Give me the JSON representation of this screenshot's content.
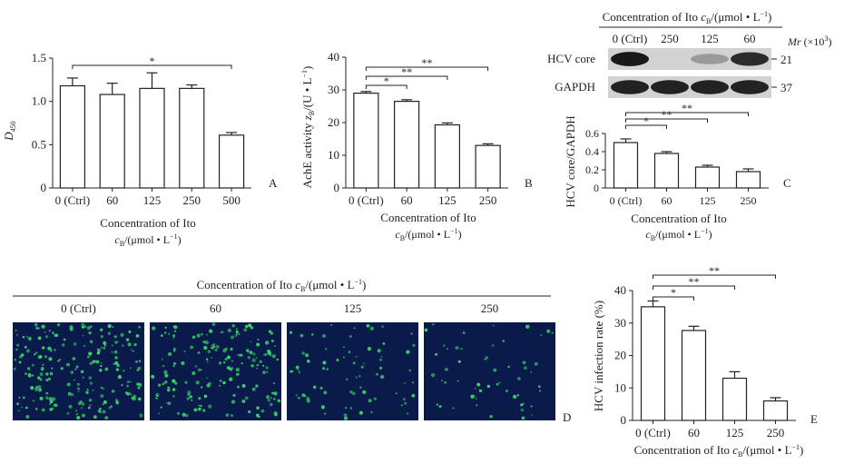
{
  "chart_data": [
    {
      "panel": "A",
      "type": "bar",
      "ylabel_main": "D",
      "ylabel_sub": "450",
      "categories": [
        "0 (Ctrl)",
        "60",
        "125",
        "250",
        "500"
      ],
      "values": [
        1.18,
        1.08,
        1.15,
        1.15,
        0.61
      ],
      "errors": [
        0.09,
        0.13,
        0.18,
        0.04,
        0.03
      ],
      "ylim": [
        0,
        1.5
      ],
      "yticks": [
        "0",
        "0.5",
        "1.0",
        "1.5"
      ],
      "xlabel_line1": "Concentration of Ito",
      "xlabel_line2": "cB/(μmol • L−1)",
      "significance": [
        {
          "from": 0,
          "to": 4,
          "mark": "*"
        }
      ]
    },
    {
      "panel": "B",
      "type": "bar",
      "ylabel_a": "AchE activity ",
      "ylabel_b": "z",
      "ylabel_b_sub": "B",
      "ylabel_c": "/(U • L",
      "ylabel_c_sup": "−1",
      "ylabel_d": ")",
      "categories": [
        "0 (Ctrl)",
        "60",
        "125",
        "250"
      ],
      "values": [
        29,
        26.5,
        19.3,
        13
      ],
      "errors": [
        0.5,
        0.5,
        0.6,
        0.5
      ],
      "ylim": [
        0,
        40
      ],
      "yticks": [
        "0",
        "10",
        "20",
        "30",
        "40"
      ],
      "xlabel_line1": "Concentration of Ito",
      "xlabel_line2": "cB/(μmol • L−1)",
      "significance": [
        {
          "from": 0,
          "to": 1,
          "mark": "*"
        },
        {
          "from": 0,
          "to": 2,
          "mark": "**"
        },
        {
          "from": 0,
          "to": 3,
          "mark": "**"
        }
      ]
    },
    {
      "panel": "C",
      "type": "bar",
      "ylabel": "HCV core/GAPDH",
      "categories": [
        "0 (Ctrl)",
        "60",
        "125",
        "250"
      ],
      "values": [
        0.5,
        0.38,
        0.23,
        0.18
      ],
      "errors": [
        0.04,
        0.02,
        0.02,
        0.03
      ],
      "ylim": [
        0,
        0.6
      ],
      "yticks": [
        "0",
        "0.2",
        "0.4",
        "0.6"
      ],
      "xlabel_line1": "Concentration of Ito",
      "xlabel_line2": "cB/(μmol • L−1)",
      "significance": [
        {
          "from": 0,
          "to": 1,
          "mark": "*"
        },
        {
          "from": 0,
          "to": 2,
          "mark": "**"
        },
        {
          "from": 0,
          "to": 3,
          "mark": "**"
        }
      ]
    },
    {
      "panel": "E",
      "type": "bar",
      "ylabel": "HCV infection rate (%)",
      "categories": [
        "0 (Ctrl)",
        "60",
        "125",
        "250"
      ],
      "values": [
        35,
        27.7,
        13,
        6
      ],
      "errors": [
        1.8,
        1.3,
        2.0,
        1.0
      ],
      "ylim": [
        0,
        40
      ],
      "yticks": [
        "0",
        "10",
        "20",
        "30",
        "40"
      ],
      "xlabel_pre": "Concentration of Ito ",
      "xlabel_c": "c",
      "xlabel_sub": "B",
      "xlabel_post": "/(μmol • L",
      "xlabel_sup": "−1",
      "xlabel_end": ")",
      "significance": [
        {
          "from": 0,
          "to": 1,
          "mark": "*"
        },
        {
          "from": 0,
          "to": 2,
          "mark": "**"
        },
        {
          "from": 0,
          "to": 3,
          "mark": "**"
        }
      ]
    }
  ],
  "western_blot": {
    "header_pre": "Concentration of Ito ",
    "header_c": "c",
    "header_sub": "B",
    "header_post": "/(μmol • L",
    "header_sup": "−1",
    "header_end": ")",
    "lanes": [
      "0 (Ctrl)",
      "250",
      "125",
      "60"
    ],
    "mr_main": "Mr",
    "mr_rest": " (×10",
    "mr_sup": "3",
    "mr_end": ")",
    "rows": [
      {
        "label": "HCV core",
        "mr": "21",
        "intensities": [
          0.95,
          0.0,
          0.25,
          0.85
        ]
      },
      {
        "label": "GAPDH",
        "mr": "37",
        "intensities": [
          0.9,
          0.9,
          0.9,
          0.9
        ]
      }
    ]
  },
  "image_panel": {
    "header_pre": "Concentration of Ito ",
    "header_c": "c",
    "header_sub": "B",
    "header_post": "/(μmol • L",
    "header_sup": "−1",
    "header_end": ")",
    "labels": [
      "0 (Ctrl)",
      "60",
      "125",
      "250"
    ],
    "density": [
      1.0,
      0.85,
      0.35,
      0.25
    ],
    "background_color": "#0a1a4a",
    "cell_color": "#3cd86a"
  },
  "panel_letters": {
    "A": "A",
    "B": "B",
    "C": "C",
    "D": "D",
    "E": "E"
  }
}
